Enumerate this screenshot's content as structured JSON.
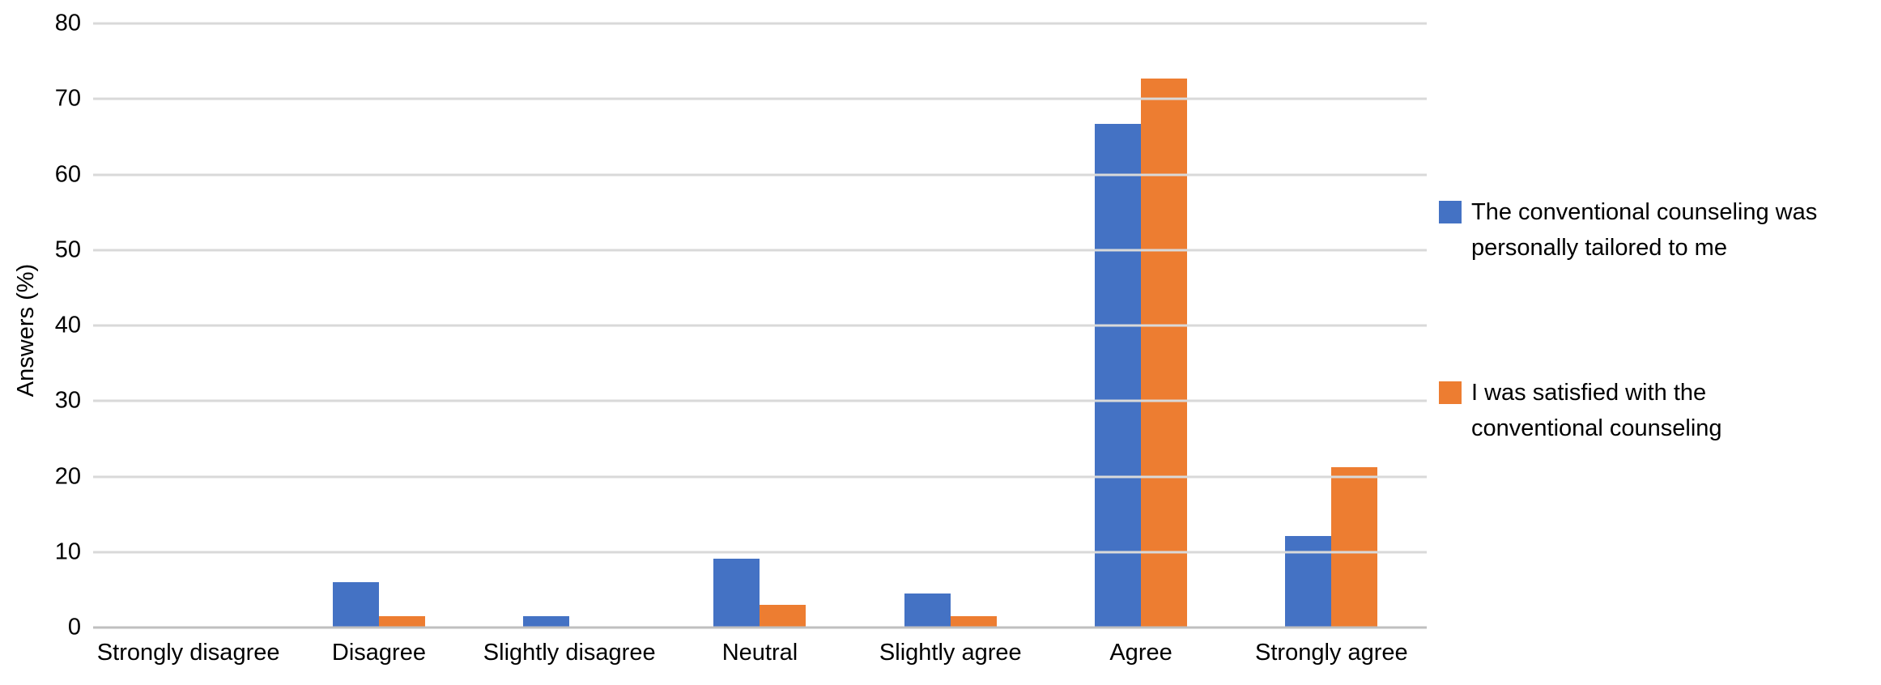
{
  "chart_data": {
    "type": "bar",
    "title": "",
    "xlabel": "",
    "ylabel": "Answers (%)",
    "categories": [
      "Strongly disagree",
      "Disagree",
      "Slightly disagree",
      "Neutral",
      "Slightly agree",
      "Agree",
      "Strongly agree"
    ],
    "series": [
      {
        "name": "The conventional counseling was personally tailored to me",
        "legend_lines": [
          "The conventional counseling was",
          "personally tailored to me"
        ],
        "color": "#4472C4",
        "values": [
          0,
          6.06,
          1.52,
          9.09,
          4.55,
          66.67,
          12.12
        ]
      },
      {
        "name": "I was satisfied with the conventional counseling",
        "legend_lines": [
          "I was satisfied with the",
          "conventional counseling"
        ],
        "color": "#ED7D31",
        "values": [
          0,
          1.52,
          0,
          3.03,
          1.52,
          72.73,
          21.21
        ]
      }
    ],
    "ylim": [
      0,
      80
    ],
    "yticks": [
      80,
      70,
      60,
      50,
      40,
      30,
      20,
      10,
      0
    ],
    "grid": true,
    "legend_position": "right"
  },
  "colors": {
    "gridline": "#D9D9D9",
    "axis_line": "#BFBFBF",
    "text": "#000000",
    "background": "#FFFFFF"
  }
}
